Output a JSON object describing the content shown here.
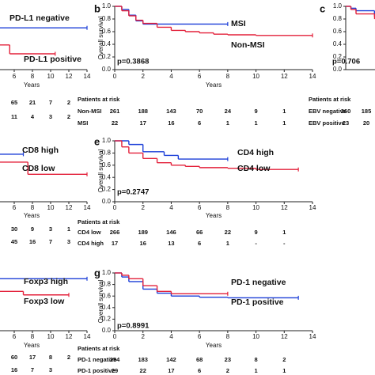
{
  "chart_data": [
    {
      "type": "step",
      "xlabel": "Years",
      "xlim": [
        0,
        14
      ],
      "ylim": [
        0,
        1
      ],
      "xticks": [
        6,
        8,
        10,
        12,
        14
      ],
      "series": [
        {
          "name": "PD-L1 negative",
          "color": "#1c3fd8",
          "x": [
            4,
            14
          ],
          "values": [
            0.66,
            0.66
          ]
        },
        {
          "name": "PD-L1 positive",
          "color": "#e3203a",
          "x": [
            4,
            5.5,
            10.5
          ],
          "values": [
            0.39,
            0.25,
            0.25
          ]
        }
      ],
      "risk_table": {
        "rows": [
          {
            "values": [
              65,
              21,
              7,
              2
            ]
          },
          {
            "values": [
              11,
              4,
              3,
              2
            ]
          }
        ]
      }
    },
    {
      "type": "step",
      "label": "b",
      "ylabel": "Overall survival",
      "xlabel": "Years",
      "xlim": [
        0,
        14
      ],
      "ylim": [
        0,
        1
      ],
      "xticks": [
        0,
        2,
        4,
        6,
        8,
        10,
        12,
        14
      ],
      "yticks": [
        {
          "value": 0,
          "label": "0.0"
        },
        0.2,
        0.4,
        0.6,
        0.8,
        {
          "value": 1,
          "label": "1.0"
        }
      ],
      "series": [
        {
          "name": "MSI",
          "color": "#1c3fd8",
          "x": [
            0,
            0.5,
            1,
            1.5,
            2,
            8
          ],
          "values": [
            1,
            0.95,
            0.86,
            0.77,
            0.72,
            0.72
          ]
        },
        {
          "name": "Non-MSI",
          "color": "#e3203a",
          "x": [
            0,
            0.5,
            1,
            1.5,
            2,
            3,
            4,
            5,
            6,
            7,
            8,
            10,
            14
          ],
          "values": [
            1,
            0.93,
            0.85,
            0.78,
            0.73,
            0.67,
            0.62,
            0.6,
            0.58,
            0.56,
            0.55,
            0.54,
            0.54
          ]
        }
      ],
      "annotation": "p=0.3868",
      "risk_table": {
        "title": "Patients at risk",
        "rows": [
          {
            "name": "Non-MSI",
            "values": [
              261,
              188,
              143,
              70,
              24,
              9,
              1
            ]
          },
          {
            "name": "MSI",
            "values": [
              22,
              17,
              16,
              6,
              1,
              1,
              1
            ]
          }
        ]
      }
    },
    {
      "type": "step",
      "label": "c",
      "xlim": [
        0,
        14
      ],
      "ylim": [
        0,
        1
      ],
      "yticks": [
        {
          "value": 0,
          "label": "0.0"
        },
        0.2,
        0.4,
        0.6,
        0.8,
        {
          "value": 1,
          "label": "1.0"
        }
      ],
      "series": [
        {
          "color": "#1c3fd8",
          "x": [
            0,
            0.5,
            1,
            2.8
          ],
          "values": [
            1,
            0.97,
            0.93,
            0.88
          ]
        },
        {
          "color": "#e3203a",
          "x": [
            0,
            0.5,
            1,
            2.8
          ],
          "values": [
            1,
            0.95,
            0.88,
            0.83
          ]
        }
      ],
      "annotation": "p=0.706",
      "risk_table": {
        "title": "Patients at risk",
        "rows": [
          {
            "name": "EBV negative",
            "values": [
              260,
              185
            ]
          },
          {
            "name": "EBV positive",
            "values": [
              23,
              20
            ]
          }
        ]
      }
    },
    {
      "type": "step",
      "xlabel": "Years",
      "xlim": [
        0,
        14
      ],
      "ylim": [
        0,
        1
      ],
      "xticks": [
        6,
        8,
        10,
        12,
        14
      ],
      "series": [
        {
          "name": "CD8 high",
          "color": "#1c3fd8",
          "x": [
            4,
            7
          ],
          "values": [
            0.78,
            0.78
          ]
        },
        {
          "name": "CD8 low",
          "color": "#e3203a",
          "x": [
            4,
            7.5,
            14
          ],
          "values": [
            0.65,
            0.45,
            0.45
          ]
        }
      ],
      "risk_table": {
        "rows": [
          {
            "values": [
              30,
              9,
              3,
              1
            ]
          },
          {
            "values": [
              45,
              16,
              7,
              3
            ]
          }
        ]
      }
    },
    {
      "type": "step",
      "label": "e",
      "ylabel": "Overall survival",
      "xlabel": "Years",
      "xlim": [
        0,
        14
      ],
      "ylim": [
        0,
        1
      ],
      "xticks": [
        0,
        2,
        4,
        6,
        8,
        10,
        12,
        14
      ],
      "yticks": [
        {
          "value": 0,
          "label": "0.0"
        },
        0.2,
        0.4,
        0.6,
        0.8,
        {
          "value": 1,
          "label": "1.0"
        }
      ],
      "series": [
        {
          "name": "CD4 high",
          "color": "#1c3fd8",
          "x": [
            0,
            1,
            2,
            3.5,
            4.5,
            8
          ],
          "values": [
            1,
            0.94,
            0.82,
            0.76,
            0.7,
            0.7
          ]
        },
        {
          "name": "CD4 low",
          "color": "#e3203a",
          "x": [
            0,
            0.5,
            1,
            2,
            3,
            4,
            5,
            6,
            8,
            10,
            13
          ],
          "values": [
            1,
            0.9,
            0.8,
            0.71,
            0.64,
            0.6,
            0.58,
            0.56,
            0.55,
            0.53,
            0.53
          ]
        }
      ],
      "annotation": "p=0.2747",
      "risk_table": {
        "title": "Patients at risk",
        "rows": [
          {
            "name": "CD4 low",
            "values": [
              266,
              189,
              146,
              66,
              22,
              9,
              1
            ]
          },
          {
            "name": "CD4 high",
            "values": [
              17,
              16,
              13,
              6,
              1,
              "-",
              "-"
            ]
          }
        ]
      }
    },
    {
      "type": "step",
      "xlabel": "Years",
      "xlim": [
        0,
        14
      ],
      "ylim": [
        0,
        1
      ],
      "xticks": [
        6,
        8,
        10,
        12,
        14
      ],
      "series": [
        {
          "name": "Foxp3 high",
          "color": "#1c3fd8",
          "x": [
            4,
            14
          ],
          "values": [
            0.9,
            0.9
          ]
        },
        {
          "name": "Foxp3 low",
          "color": "#e3203a",
          "x": [
            4,
            7,
            12
          ],
          "values": [
            0.68,
            0.62,
            0.62
          ]
        }
      ],
      "risk_table": {
        "rows": [
          {
            "values": [
              60,
              17,
              8,
              2
            ]
          },
          {
            "values": [
              16,
              7,
              3
            ]
          }
        ]
      }
    },
    {
      "type": "step",
      "label": "g",
      "ylabel": "Overall survival",
      "xlabel": "Years",
      "xlim": [
        0,
        14
      ],
      "ylim": [
        0,
        1
      ],
      "xticks": [
        0,
        2,
        4,
        6,
        8,
        10,
        12,
        14
      ],
      "yticks": [
        {
          "value": 0,
          "label": "0.0"
        },
        0.2,
        0.4,
        0.6,
        0.8,
        {
          "value": 1,
          "label": "1.0"
        }
      ],
      "series": [
        {
          "name": "PD-1 negative",
          "color": "#1c3fd8",
          "x": [
            0,
            0.5,
            1,
            2,
            3,
            4,
            6,
            8,
            13
          ],
          "values": [
            1,
            0.93,
            0.85,
            0.72,
            0.65,
            0.6,
            0.58,
            0.57,
            0.57
          ]
        },
        {
          "name": "PD-1 positive",
          "color": "#e3203a",
          "x": [
            0,
            0.5,
            1,
            2,
            3,
            4,
            8
          ],
          "values": [
            1,
            0.96,
            0.9,
            0.78,
            0.68,
            0.64,
            0.64
          ]
        }
      ],
      "annotation": "p=0.8991",
      "risk_table": {
        "title": "Patients at risk",
        "rows": [
          {
            "name": "PD-1 negative",
            "values": [
              254,
              183,
              142,
              68,
              23,
              8,
              2
            ]
          },
          {
            "name": "PD-1 positive",
            "values": [
              29,
              22,
              17,
              6,
              2,
              1,
              1
            ]
          }
        ]
      }
    }
  ]
}
